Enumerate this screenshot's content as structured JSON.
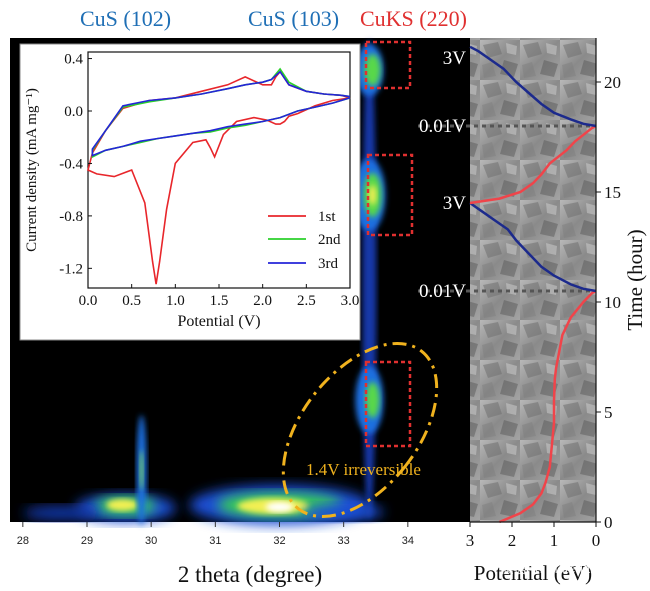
{
  "headers": [
    {
      "text": "CuS (102)",
      "color": "#1f6fb5"
    },
    {
      "text": "CuS (103)",
      "color": "#1f6fb5"
    },
    {
      "text": "CuKS (220)",
      "color": "#e03030"
    }
  ],
  "chart_data": [
    {
      "type": "heatmap",
      "xlabel": "2 theta (degree)",
      "xlim": [
        27.8,
        35.0
      ],
      "x_ticks": [
        "28",
        "29",
        "30",
        "31",
        "32",
        "33",
        "34"
      ],
      "annotation": "1.4V irreversible",
      "annotation_color": "#f0b21e"
    },
    {
      "type": "line",
      "xlabel": "Potential (V)",
      "ylabel": "Current density (mA mg⁻¹)",
      "xlim": [
        0.0,
        3.0
      ],
      "ylim": [
        -1.35,
        0.45
      ],
      "x_ticks": [
        "0.0",
        "0.5",
        "1.0",
        "1.5",
        "2.0",
        "2.5",
        "3.0"
      ],
      "y_ticks": [
        "0.4",
        "0.0",
        "-0.4",
        "-0.8",
        "-1.2"
      ],
      "series": [
        {
          "name": "1st",
          "color": "#e8262b",
          "x": [
            3.0,
            2.8,
            2.6,
            2.4,
            2.3,
            2.25,
            2.2,
            2.15,
            2.05,
            1.9,
            1.7,
            1.55,
            1.45,
            1.4,
            1.35,
            1.2,
            1.0,
            0.9,
            0.82,
            0.78,
            0.74,
            0.65,
            0.5,
            0.3,
            0.1,
            0.0,
            0.05,
            0.2,
            0.4,
            0.7,
            1.0,
            1.3,
            1.6,
            1.8,
            2.0,
            2.1,
            2.15,
            2.2,
            2.3,
            2.5,
            2.7,
            2.9,
            3.0
          ],
          "y": [
            0.1,
            0.08,
            0.04,
            -0.02,
            -0.04,
            -0.08,
            -0.1,
            -0.1,
            -0.07,
            -0.05,
            -0.08,
            -0.18,
            -0.35,
            -0.28,
            -0.22,
            -0.24,
            -0.4,
            -0.75,
            -1.15,
            -1.32,
            -1.15,
            -0.7,
            -0.45,
            -0.5,
            -0.48,
            -0.45,
            -0.32,
            -0.15,
            0.02,
            0.08,
            0.1,
            0.15,
            0.2,
            0.26,
            0.2,
            0.2,
            0.26,
            0.3,
            0.2,
            0.15,
            0.13,
            0.12,
            0.1
          ]
        },
        {
          "name": "2nd",
          "color": "#2bd02b",
          "x": [
            3.0,
            2.8,
            2.6,
            2.4,
            2.2,
            2.0,
            1.8,
            1.6,
            1.4,
            1.2,
            1.0,
            0.8,
            0.6,
            0.4,
            0.2,
            0.05,
            0.05,
            0.2,
            0.4,
            0.7,
            1.0,
            1.3,
            1.6,
            1.8,
            2.0,
            2.1,
            2.2,
            2.3,
            2.5,
            2.7,
            2.9,
            3.0
          ],
          "y": [
            0.1,
            0.06,
            0.03,
            0.0,
            -0.05,
            -0.08,
            -0.11,
            -0.13,
            -0.16,
            -0.17,
            -0.19,
            -0.21,
            -0.24,
            -0.27,
            -0.3,
            -0.35,
            -0.3,
            -0.15,
            0.03,
            0.07,
            0.1,
            0.13,
            0.17,
            0.2,
            0.22,
            0.24,
            0.32,
            0.22,
            0.15,
            0.13,
            0.12,
            0.11
          ]
        },
        {
          "name": "3rd",
          "color": "#2424d8",
          "x": [
            3.0,
            2.8,
            2.6,
            2.4,
            2.2,
            2.0,
            1.8,
            1.6,
            1.4,
            1.2,
            1.0,
            0.8,
            0.6,
            0.4,
            0.2,
            0.05,
            0.05,
            0.2,
            0.4,
            0.7,
            1.0,
            1.3,
            1.6,
            1.8,
            2.0,
            2.1,
            2.2,
            2.3,
            2.5,
            2.7,
            2.9,
            3.0
          ],
          "y": [
            0.1,
            0.06,
            0.03,
            0.0,
            -0.05,
            -0.08,
            -0.1,
            -0.12,
            -0.15,
            -0.17,
            -0.19,
            -0.21,
            -0.23,
            -0.27,
            -0.3,
            -0.34,
            -0.29,
            -0.15,
            0.04,
            0.08,
            0.1,
            0.13,
            0.17,
            0.2,
            0.22,
            0.24,
            0.3,
            0.2,
            0.15,
            0.13,
            0.12,
            0.11
          ]
        }
      ]
    },
    {
      "type": "line",
      "xlabel": "Potential (eV)",
      "ylabel": "Time (hour)",
      "xlim": [
        3.0,
        0.0
      ],
      "ylim": [
        0,
        22
      ],
      "x_ticks": [
        "3",
        "2",
        "1",
        "0"
      ],
      "y_ticks": [
        "0",
        "5",
        "10",
        "15",
        "20"
      ],
      "voltage_labels": [
        "3V",
        "0.01V",
        "3V",
        "0.01V"
      ],
      "voltage_label_times": [
        21.1,
        18.0,
        14.5,
        10.5
      ],
      "markers_dashed_times": [
        18.0,
        10.5
      ],
      "series": [
        {
          "segment": "discharge-1",
          "color": "#f0444a",
          "x": [
            2.3,
            1.8,
            1.5,
            1.3,
            1.2,
            1.1,
            1.05,
            1.0,
            1.0,
            0.98,
            0.95,
            0.9,
            0.85,
            0.8,
            0.6,
            0.3,
            0.1,
            0.0
          ],
          "y": [
            0.0,
            0.4,
            0.8,
            1.3,
            1.8,
            2.5,
            3.5,
            4.5,
            5.5,
            6.5,
            7.0,
            7.5,
            8.0,
            8.5,
            9.3,
            10.0,
            10.4,
            10.5
          ]
        },
        {
          "segment": "charge-1",
          "color": "#1c2a8c",
          "x": [
            0.0,
            0.3,
            0.6,
            1.0,
            1.3,
            1.5,
            1.7,
            1.9,
            2.1,
            2.4,
            2.7,
            3.0
          ],
          "y": [
            10.5,
            10.6,
            10.8,
            11.2,
            11.6,
            12.0,
            12.4,
            12.8,
            13.3,
            13.7,
            14.1,
            14.5
          ]
        },
        {
          "segment": "discharge-2",
          "color": "#f0444a",
          "x": [
            3.0,
            2.3,
            1.8,
            1.5,
            1.3,
            1.1,
            0.9,
            0.7,
            0.5,
            0.3,
            0.1,
            0.0
          ],
          "y": [
            14.5,
            14.7,
            15.0,
            15.4,
            15.8,
            16.3,
            16.6,
            16.9,
            17.3,
            17.6,
            17.9,
            18.0
          ]
        },
        {
          "segment": "charge-2",
          "color": "#1c2a8c",
          "x": [
            0.0,
            0.3,
            0.6,
            1.0,
            1.3,
            1.6,
            1.9,
            2.2,
            2.5,
            2.8,
            3.0
          ],
          "y": [
            18.0,
            18.1,
            18.3,
            18.6,
            19.0,
            19.5,
            20.0,
            20.6,
            21.0,
            21.4,
            21.6
          ]
        }
      ]
    }
  ],
  "inset_legend": [
    "1st",
    "2nd",
    "3rd"
  ],
  "watermark": "微信号: materialsviews"
}
